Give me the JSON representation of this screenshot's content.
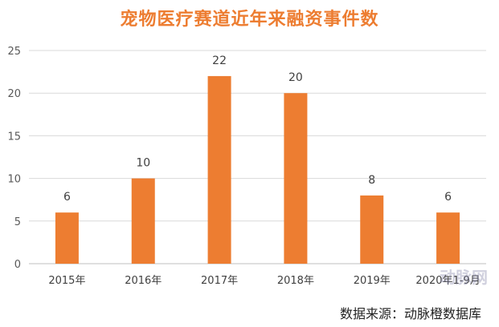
{
  "chart_data": {
    "type": "bar",
    "title": "宠物医疗赛道近年来融资事件数",
    "categories": [
      "2015年",
      "2016年",
      "2017年",
      "2018年",
      "2019年",
      "2020年1-9月"
    ],
    "values": [
      6,
      10,
      22,
      20,
      8,
      6
    ],
    "ylim": [
      0,
      25
    ],
    "yticks": [
      0,
      5,
      10,
      15,
      20,
      25
    ],
    "grid": true,
    "bar_color": "#ED7D31",
    "title_color": "#ED7D31",
    "xlabel": "",
    "ylabel": ""
  },
  "source": "数据来源：动脉橙数据库",
  "watermark": "动脉网"
}
